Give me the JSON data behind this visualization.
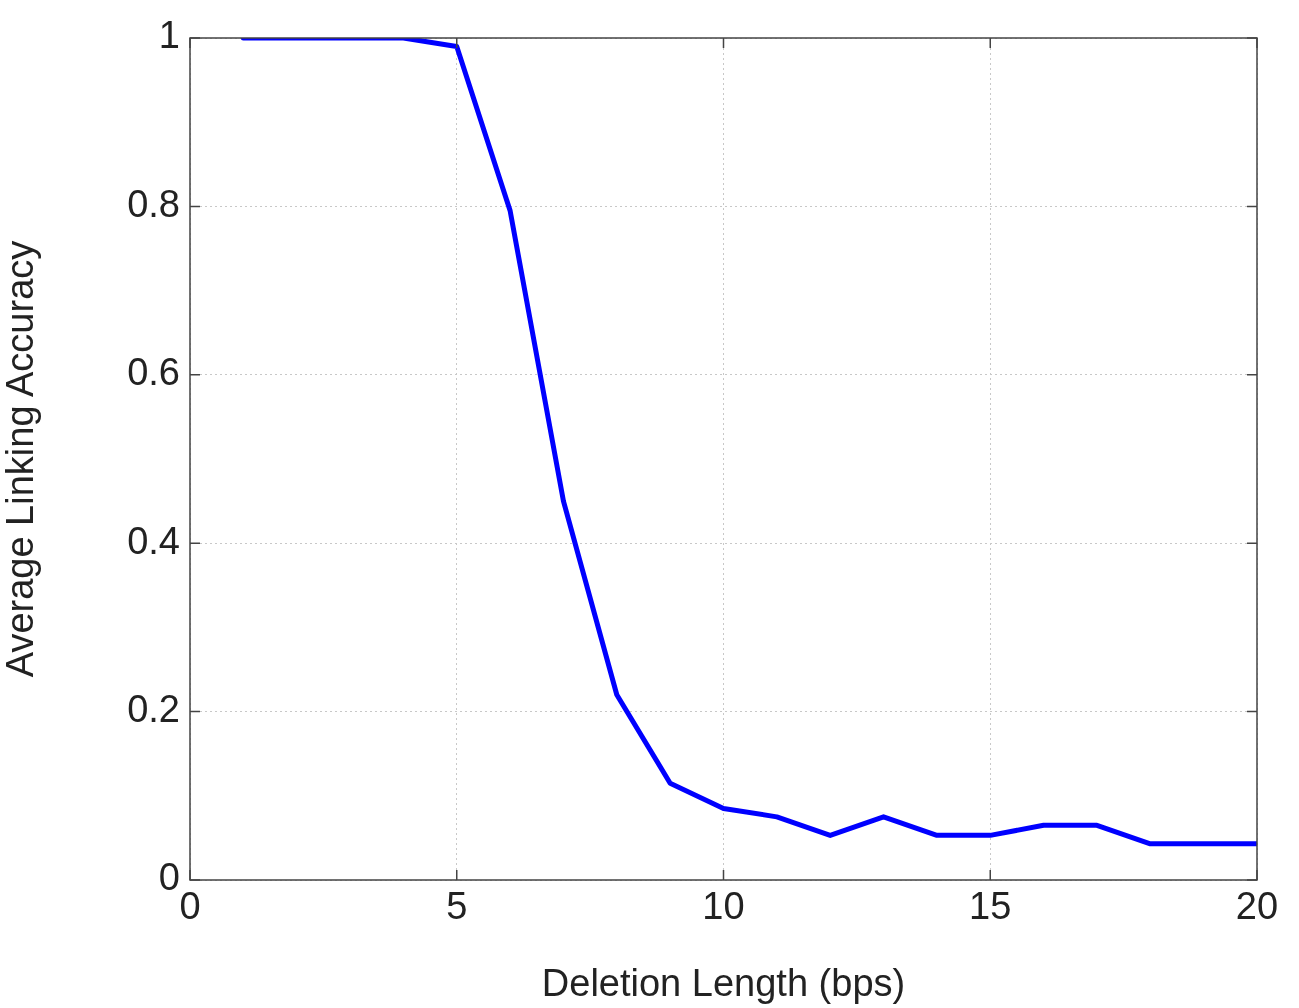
{
  "chart_data": {
    "type": "line",
    "xlabel": "Deletion Length (bps)",
    "ylabel": "Average Linking Accuracy",
    "x": [
      1,
      2,
      3,
      4,
      5,
      6,
      7,
      8,
      9,
      10,
      11,
      12,
      13,
      14,
      15,
      16,
      17,
      18,
      19,
      20
    ],
    "series": [
      {
        "color": "#0000ff",
        "values": [
          1,
          1,
          1,
          1,
          0.99,
          0.795,
          0.45,
          0.22,
          0.115,
          0.085,
          0.075,
          0.053,
          0.075,
          0.053,
          0.053,
          0.065,
          0.065,
          0.043,
          0.043,
          0.043
        ]
      }
    ],
    "xlim": [
      0,
      20
    ],
    "xticks": [
      0,
      5,
      10,
      15,
      20
    ],
    "ylim": [
      0,
      1
    ],
    "yticks": [
      0,
      0.2,
      0.4,
      0.6,
      0.8,
      1
    ],
    "grid": true,
    "legend": false,
    "marker": "none",
    "line_style": "solid"
  }
}
